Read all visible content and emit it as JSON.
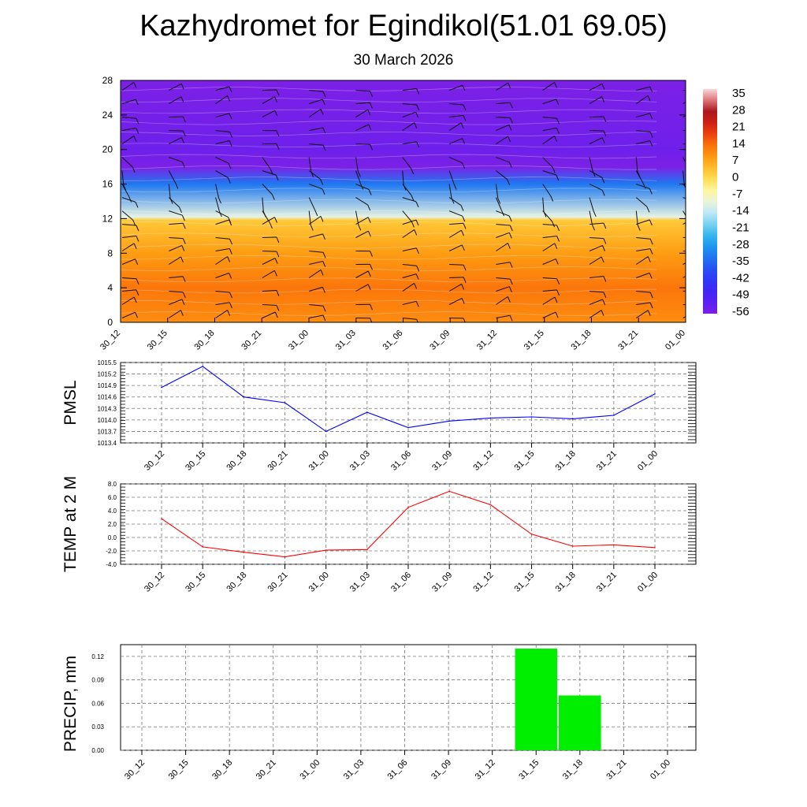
{
  "header": {
    "title": "Kazhydromet for Egindikol(51.01 69.05)",
    "date": "30 March 2026"
  },
  "chart_data": [
    {
      "id": "upper-air",
      "type": "heatmap",
      "x": [
        "30_12",
        "30_15",
        "30_18",
        "30_21",
        "31_00",
        "31_03",
        "31_06",
        "31_09",
        "31_12",
        "31_15",
        "31_18",
        "31_21",
        "01_00"
      ],
      "y_ticks": [
        "0",
        "4",
        "8",
        "12",
        "16",
        "20",
        "24",
        "28"
      ],
      "ylim": [
        0,
        28
      ],
      "colorbar_labels": [
        "35",
        "28",
        "21",
        "14",
        "7",
        "0",
        "-7",
        "-14",
        "-21",
        "-28",
        "-35",
        "-42",
        "-49",
        "-56"
      ],
      "colorbar_range": [
        -60,
        38
      ],
      "temperature_profile": [
        {
          "level": 0,
          "value": 10
        },
        {
          "level": 4,
          "value": 13
        },
        {
          "level": 8,
          "value": 8
        },
        {
          "level": 11.8,
          "value": 2
        },
        {
          "level": 12.2,
          "value": -12
        },
        {
          "level": 16,
          "value": -35
        },
        {
          "level": 18,
          "value": -65
        },
        {
          "level": 20,
          "value": -58
        },
        {
          "level": 28,
          "value": -64
        }
      ],
      "overlay": "wind barbs"
    },
    {
      "id": "pmsl",
      "type": "line",
      "ylabel": "PMSL",
      "x": [
        "30_12",
        "30_15",
        "30_18",
        "30_21",
        "31_00",
        "31_03",
        "31_06",
        "31_09",
        "31_12",
        "31_15",
        "31_18",
        "31_21",
        "01_00"
      ],
      "values": [
        1014.85,
        1015.4,
        1014.6,
        1014.45,
        1013.7,
        1014.2,
        1013.8,
        1013.97,
        1014.05,
        1014.08,
        1014.03,
        1014.12,
        1014.68
      ],
      "y_ticks": [
        "1015.5",
        "1015.2",
        "1014.9",
        "1014.6",
        "1014.3",
        "1014.0",
        "1013.7",
        "1013.4"
      ],
      "ylim": [
        1013.4,
        1015.5
      ],
      "color": "#0000ff"
    },
    {
      "id": "temp2m",
      "type": "line",
      "ylabel": "TEMP at 2 M",
      "x": [
        "30_12",
        "30_15",
        "30_18",
        "30_21",
        "31_00",
        "31_03",
        "31_06",
        "31_09",
        "31_12",
        "31_15",
        "31_18",
        "31_21",
        "01_00"
      ],
      "values": [
        2.8,
        -1.4,
        -2.2,
        -2.9,
        -1.9,
        -1.8,
        4.5,
        6.9,
        4.9,
        0.5,
        -1.3,
        -1.1,
        -1.5
      ],
      "y_ticks": [
        "8.0",
        "6.0",
        "4.0",
        "2.0",
        "0.0",
        "-2.0",
        "-4.0"
      ],
      "ylim": [
        -4,
        8
      ],
      "color": "#ff0000"
    },
    {
      "id": "precip",
      "type": "bar",
      "ylabel": "PRECIP, mm",
      "categories": [
        "30_12",
        "30_15",
        "30_18",
        "30_21",
        "31_00",
        "31_03",
        "31_06",
        "31_09",
        "31_12",
        "31_15",
        "31_18",
        "31_21",
        "01_00"
      ],
      "values": [
        0,
        0,
        0,
        0,
        0,
        0,
        0,
        0,
        0,
        0.13,
        0.07,
        0,
        0
      ],
      "y_ticks": [
        "0.12",
        "0.09",
        "0.06",
        "0.03",
        "0.00"
      ],
      "ylim": [
        0,
        0.135
      ],
      "color": "#00ee00"
    }
  ]
}
